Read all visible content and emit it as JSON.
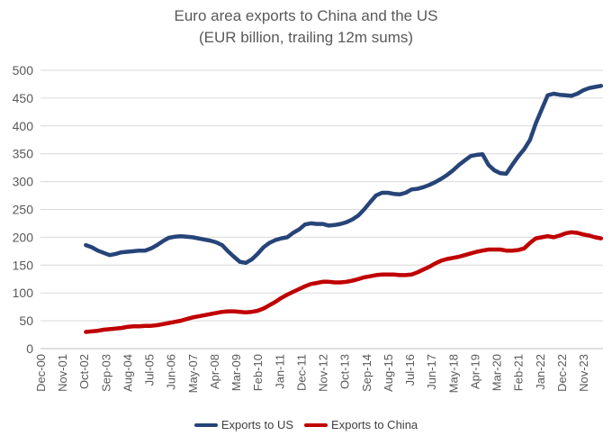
{
  "chart_data": {
    "type": "line",
    "title": "Euro area exports to China and the US",
    "subtitle": "(EUR billion, trailing 12m sums)",
    "xlabel": "",
    "ylabel": "",
    "ylim": [
      0,
      500
    ],
    "yticks": [
      0,
      50,
      100,
      150,
      200,
      250,
      300,
      350,
      400,
      450,
      500
    ],
    "xticks": [
      "Dec-00",
      "Nov-01",
      "Oct-02",
      "Sep-03",
      "Aug-04",
      "Jul-05",
      "Jun-06",
      "May-07",
      "Apr-08",
      "Mar-09",
      "Feb-10",
      "Jan-11",
      "Dec-11",
      "Nov-12",
      "Oct-13",
      "Sep-14",
      "Aug-15",
      "Jul-16",
      "Jun-17",
      "May-18",
      "Apr-19",
      "Mar-20",
      "Feb-21",
      "Jan-22",
      "Dec-22",
      "Nov-23"
    ],
    "xtick_positions": [
      0,
      11,
      22,
      33,
      44,
      55,
      66,
      77,
      88,
      99,
      110,
      121,
      132,
      143,
      154,
      165,
      176,
      187,
      198,
      209,
      220,
      231,
      242,
      253,
      264,
      275
    ],
    "x_range_months": [
      0,
      285
    ],
    "grid": "horizontal",
    "legend_position": "bottom",
    "series": [
      {
        "name": "Exports to US",
        "color": "#264478",
        "x": [
          23,
          26,
          29,
          32,
          35,
          38,
          41,
          44,
          47,
          50,
          53,
          56,
          59,
          62,
          65,
          68,
          71,
          74,
          77,
          80,
          83,
          86,
          89,
          92,
          95,
          98,
          101,
          104,
          107,
          110,
          113,
          116,
          119,
          122,
          125,
          128,
          131,
          134,
          137,
          140,
          143,
          146,
          149,
          152,
          155,
          158,
          161,
          164,
          167,
          170,
          173,
          176,
          179,
          182,
          185,
          188,
          191,
          194,
          197,
          200,
          203,
          206,
          209,
          212,
          215,
          218,
          221,
          224,
          227,
          230,
          233,
          236,
          239,
          242,
          245,
          248,
          251,
          254,
          257,
          260,
          263,
          266,
          269,
          272,
          275,
          278,
          281,
          284
        ],
        "values": [
          186,
          182,
          176,
          172,
          168,
          170,
          173,
          174,
          175,
          176,
          176,
          180,
          186,
          193,
          199,
          201,
          202,
          201,
          200,
          198,
          196,
          194,
          191,
          186,
          175,
          165,
          156,
          154,
          160,
          170,
          182,
          190,
          195,
          198,
          200,
          208,
          214,
          223,
          225,
          224,
          224,
          221,
          222,
          224,
          227,
          232,
          239,
          250,
          263,
          275,
          280,
          280,
          278,
          277,
          280,
          286,
          287,
          290,
          294,
          299,
          305,
          312,
          320,
          330,
          338,
          346,
          348,
          349,
          330,
          320,
          315,
          314,
          330,
          345,
          358,
          375,
          405,
          430,
          455,
          458,
          456,
          455,
          454,
          458,
          464,
          468,
          470,
          472
        ]
      },
      {
        "name": "Exports to China",
        "color": "#C00000",
        "x": [
          23,
          26,
          29,
          32,
          35,
          38,
          41,
          44,
          47,
          50,
          53,
          56,
          59,
          62,
          65,
          68,
          71,
          74,
          77,
          80,
          83,
          86,
          89,
          92,
          95,
          98,
          101,
          104,
          107,
          110,
          113,
          116,
          119,
          122,
          125,
          128,
          131,
          134,
          137,
          140,
          143,
          146,
          149,
          152,
          155,
          158,
          161,
          164,
          167,
          170,
          173,
          176,
          179,
          182,
          185,
          188,
          191,
          194,
          197,
          200,
          203,
          206,
          209,
          212,
          215,
          218,
          221,
          224,
          227,
          230,
          233,
          236,
          239,
          242,
          245,
          248,
          251,
          254,
          257,
          260,
          263,
          266,
          269,
          272,
          275,
          278,
          281,
          284
        ],
        "values": [
          30,
          31,
          32,
          34,
          35,
          36,
          37,
          39,
          40,
          40,
          41,
          41,
          42,
          44,
          46,
          48,
          50,
          53,
          56,
          58,
          60,
          62,
          64,
          66,
          67,
          67,
          66,
          65,
          66,
          68,
          72,
          78,
          84,
          91,
          97,
          102,
          107,
          112,
          116,
          118,
          120,
          120,
          119,
          119,
          120,
          122,
          125,
          128,
          130,
          132,
          133,
          133,
          133,
          132,
          132,
          133,
          137,
          142,
          147,
          153,
          158,
          161,
          163,
          165,
          168,
          171,
          174,
          176,
          178,
          178,
          178,
          176,
          176,
          177,
          180,
          190,
          198,
          200,
          202,
          200,
          203,
          207,
          209,
          208,
          205,
          203,
          200,
          198
        ]
      }
    ]
  }
}
